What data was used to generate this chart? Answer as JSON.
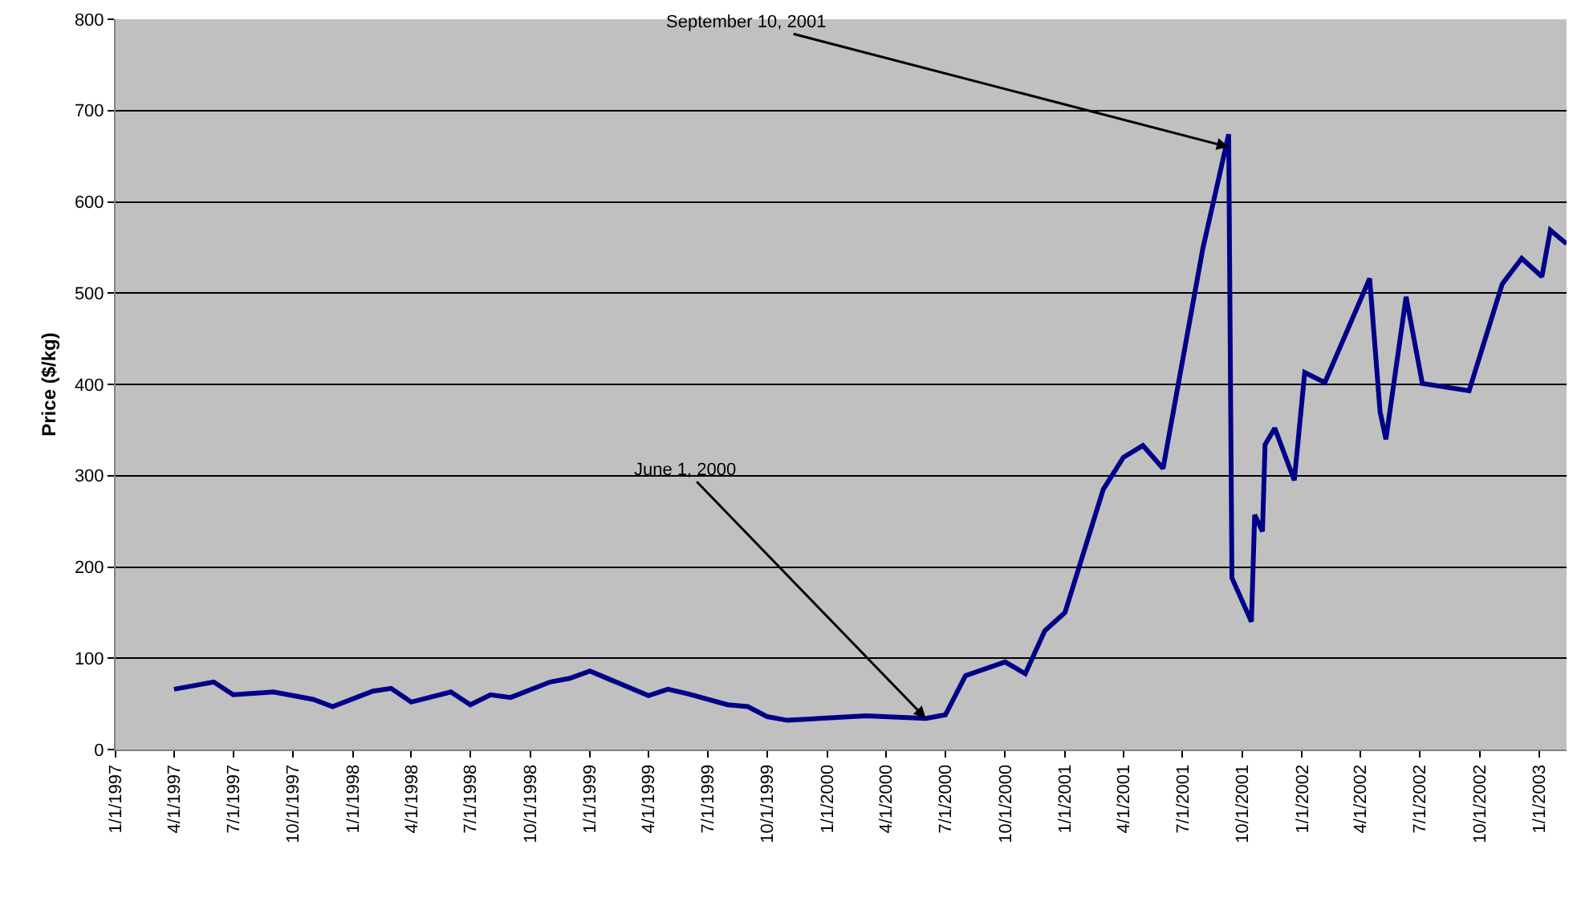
{
  "chart_data": {
    "type": "line",
    "ylabel": "Price ($/kg)",
    "x": [
      "1997-04-01",
      "1997-06-01",
      "1997-07-01",
      "1997-09-01",
      "1997-11-01",
      "1997-12-01",
      "1998-02-01",
      "1998-03-01",
      "1998-04-01",
      "1998-06-01",
      "1998-07-01",
      "1998-08-01",
      "1998-09-01",
      "1998-11-01",
      "1998-12-01",
      "1999-01-01",
      "1999-04-01",
      "1999-05-01",
      "1999-06-01",
      "1999-08-01",
      "1999-09-01",
      "1999-10-01",
      "1999-11-01",
      "2000-03-01",
      "2000-06-01",
      "2000-07-01",
      "2000-08-01",
      "2000-10-01",
      "2000-11-01",
      "2000-12-01",
      "2001-01-01",
      "2001-03-01",
      "2001-04-01",
      "2001-05-01",
      "2001-06-01",
      "2001-08-01",
      "2001-09-10",
      "2001-09-15",
      "2001-10-15",
      "2001-10-20",
      "2001-11-01",
      "2001-11-05",
      "2001-11-20",
      "2001-12-20",
      "2002-01-05",
      "2002-02-05",
      "2002-04-15",
      "2002-05-01",
      "2002-05-10",
      "2002-06-10",
      "2002-07-05",
      "2002-09-15",
      "2002-11-05",
      "2002-12-05",
      "2003-01-05",
      "2003-01-18",
      "2003-02-12"
    ],
    "series": [
      {
        "color": "#000088",
        "values": [
          66,
          74,
          60,
          63,
          55,
          47,
          64,
          67,
          52,
          63,
          49,
          60,
          57,
          74,
          78,
          86,
          59,
          66,
          61,
          49,
          47,
          36,
          32,
          37,
          34,
          38,
          81,
          96,
          83,
          130,
          150,
          285,
          320,
          333,
          308,
          548,
          674,
          188,
          140,
          257,
          239,
          334,
          352,
          295,
          413,
          402,
          516,
          370,
          340,
          496,
          401,
          393,
          510,
          538,
          518,
          569,
          554
        ]
      }
    ],
    "xlim": [
      "1997-01-01",
      "2003-02-12"
    ],
    "xticks": [
      {
        "value": "1997-01-01",
        "label": "1/1/1997"
      },
      {
        "value": "1997-04-01",
        "label": "4/1/1997"
      },
      {
        "value": "1997-07-01",
        "label": "7/1/1997"
      },
      {
        "value": "1997-10-01",
        "label": "10/1/1997"
      },
      {
        "value": "1998-01-01",
        "label": "1/1/1998"
      },
      {
        "value": "1998-04-01",
        "label": "4/1/1998"
      },
      {
        "value": "1998-07-01",
        "label": "7/1/1998"
      },
      {
        "value": "1998-10-01",
        "label": "10/1/1998"
      },
      {
        "value": "1999-01-01",
        "label": "1/1/1999"
      },
      {
        "value": "1999-04-01",
        "label": "4/1/1999"
      },
      {
        "value": "1999-07-01",
        "label": "7/1/1999"
      },
      {
        "value": "1999-10-01",
        "label": "10/1/1999"
      },
      {
        "value": "2000-01-01",
        "label": "1/1/2000"
      },
      {
        "value": "2000-04-01",
        "label": "4/1/2000"
      },
      {
        "value": "2000-07-01",
        "label": "7/1/2000"
      },
      {
        "value": "2000-10-01",
        "label": "10/1/2000"
      },
      {
        "value": "2001-01-01",
        "label": "1/1/2001"
      },
      {
        "value": "2001-04-01",
        "label": "4/1/2001"
      },
      {
        "value": "2001-07-01",
        "label": "7/1/2001"
      },
      {
        "value": "2001-10-01",
        "label": "10/1/2001"
      },
      {
        "value": "2002-01-01",
        "label": "1/1/2002"
      },
      {
        "value": "2002-04-01",
        "label": "4/1/2002"
      },
      {
        "value": "2002-07-01",
        "label": "7/1/2002"
      },
      {
        "value": "2002-10-01",
        "label": "10/1/2002"
      },
      {
        "value": "2003-01-01",
        "label": "1/1/2003"
      }
    ],
    "ylim": [
      0,
      800
    ],
    "yticks": [
      0,
      100,
      200,
      300,
      400,
      500,
      600,
      700,
      800
    ],
    "grid": "y",
    "marker": "none",
    "line_style": "solid",
    "annotations": [
      {
        "text": "September 10, 2001",
        "x": "2001-09-10",
        "y": 660
      },
      {
        "text": "June 1, 2000",
        "x": "2000-06-01",
        "y": 34
      }
    ]
  }
}
